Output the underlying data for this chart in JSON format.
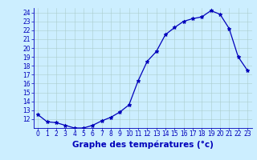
{
  "x": [
    0,
    1,
    2,
    3,
    4,
    5,
    6,
    7,
    8,
    9,
    10,
    11,
    12,
    13,
    14,
    15,
    16,
    17,
    18,
    19,
    20,
    21,
    22,
    23
  ],
  "y": [
    12.5,
    11.7,
    11.6,
    11.3,
    11.0,
    11.0,
    11.3,
    11.8,
    12.2,
    12.8,
    13.6,
    16.3,
    18.5,
    19.6,
    21.5,
    22.3,
    23.0,
    23.3,
    23.5,
    24.2,
    23.8,
    22.2,
    19.0,
    17.5
  ],
  "line_color": "#0000bb",
  "marker": "*",
  "bg_color": "#cceeff",
  "grid_color": "#aacccc",
  "xlabel": "Graphe des températures (°c)",
  "xlabel_color": "#0000bb",
  "axis_color": "#0000bb",
  "tick_color": "#0000bb",
  "ylim_min": 11.0,
  "ylim_max": 24.5,
  "xlim_min": -0.5,
  "xlim_max": 23.5,
  "yticks": [
    12,
    13,
    14,
    15,
    16,
    17,
    18,
    19,
    20,
    21,
    22,
    23,
    24
  ],
  "xticks": [
    0,
    1,
    2,
    3,
    4,
    5,
    6,
    7,
    8,
    9,
    10,
    11,
    12,
    13,
    14,
    15,
    16,
    17,
    18,
    19,
    20,
    21,
    22,
    23
  ],
  "fontsize_ticks": 5.5,
  "fontsize_xlabel": 7.5
}
